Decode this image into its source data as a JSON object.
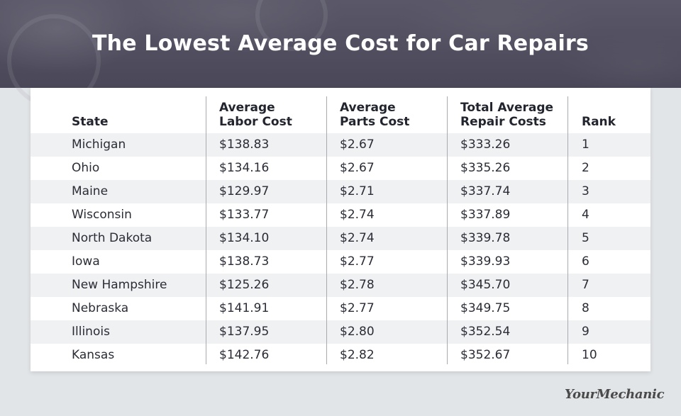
{
  "header": {
    "title": "The Lowest Average Cost for Car Repairs"
  },
  "chart_data": {
    "type": "table",
    "title": "The Lowest Average Cost for Car Repairs",
    "columns": [
      "State",
      "Average Labor Cost",
      "Average Parts Cost",
      "Total Average Repair Costs",
      "Rank"
    ],
    "column_headers": [
      [
        "State"
      ],
      [
        "Average",
        "Labor Cost"
      ],
      [
        "Average",
        "Parts Cost"
      ],
      [
        "Total Average",
        "Repair Costs"
      ],
      [
        "Rank"
      ]
    ],
    "rows": [
      [
        "Michigan",
        "$138.83",
        "$2.67",
        "$333.26",
        "1"
      ],
      [
        "Ohio",
        "$134.16",
        "$2.67",
        "$335.26",
        "2"
      ],
      [
        "Maine",
        "$129.97",
        "$2.71",
        "$337.74",
        "3"
      ],
      [
        "Wisconsin",
        "$133.77",
        "$2.74",
        "$337.89",
        "4"
      ],
      [
        "North Dakota",
        "$134.10",
        "$2.74",
        "$339.78",
        "5"
      ],
      [
        "Iowa",
        "$138.73",
        "$2.77",
        "$339.93",
        "6"
      ],
      [
        "New Hampshire",
        "$125.26",
        "$2.78",
        "$345.70",
        "7"
      ],
      [
        "Nebraska",
        "$141.91",
        "$2.77",
        "$349.75",
        "8"
      ],
      [
        "Illinois",
        "$137.95",
        "$2.80",
        "$352.54",
        "9"
      ],
      [
        "Kansas",
        "$142.76",
        "$2.82",
        "$352.67",
        "10"
      ]
    ]
  },
  "footer": {
    "brand": "YourMechanic"
  },
  "colors": {
    "banner": "#4e4c5c",
    "title_text": "#ffffff",
    "row_shade": "#f0f1f3",
    "background": "#e2e5e8"
  }
}
